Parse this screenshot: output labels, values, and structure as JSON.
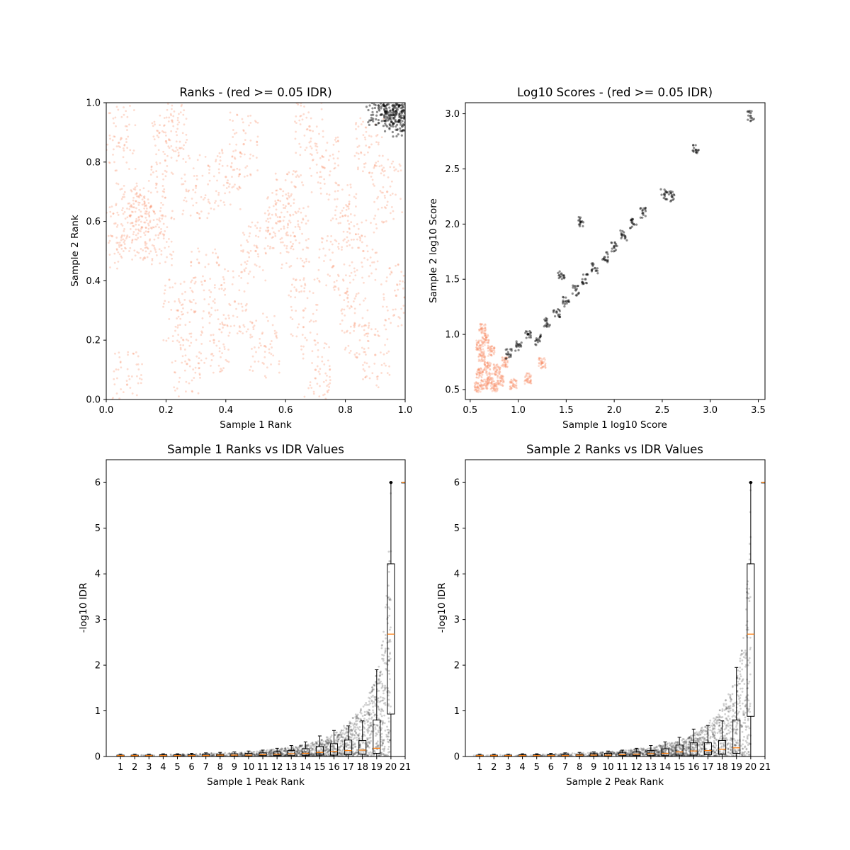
{
  "chart_data": [
    {
      "type": "scatter",
      "title": "Ranks - (red >= 0.05 IDR)",
      "xlabel": "Sample 1 Rank",
      "ylabel": "Sample 2 Rank",
      "xlim": [
        0.0,
        1.0
      ],
      "ylim": [
        0.0,
        1.0
      ],
      "xticks": [
        "0.0",
        "0.2",
        "0.4",
        "0.6",
        "0.8",
        "1.0"
      ],
      "yticks": [
        "0.0",
        "0.2",
        "0.4",
        "0.6",
        "0.8",
        "1.0"
      ],
      "grid": false,
      "colors": {
        "pass": "#000000",
        "fail": "#fa8c64"
      },
      "series": [
        {
          "points": [
            [
              0.02,
              0.55
            ],
            [
              0.05,
              0.88
            ],
            [
              0.08,
              0.62
            ],
            [
              0.1,
              0.6
            ],
            [
              0.12,
              0.58
            ],
            [
              0.15,
              0.65
            ],
            [
              0.18,
              0.56
            ],
            [
              0.2,
              0.87
            ],
            [
              0.24,
              0.3
            ],
            [
              0.27,
              0.12
            ],
            [
              0.3,
              0.72
            ],
            [
              0.33,
              0.4
            ],
            [
              0.36,
              0.2
            ],
            [
              0.4,
              0.75
            ],
            [
              0.43,
              0.33
            ],
            [
              0.46,
              0.86
            ],
            [
              0.5,
              0.5
            ],
            [
              0.53,
              0.18
            ],
            [
              0.58,
              0.6
            ],
            [
              0.61,
              0.66
            ],
            [
              0.63,
              0.55
            ],
            [
              0.66,
              0.3
            ],
            [
              0.7,
              0.1
            ],
            [
              0.73,
              0.78
            ],
            [
              0.76,
              0.45
            ],
            [
              0.8,
              0.62
            ],
            [
              0.83,
              0.25
            ],
            [
              0.86,
              0.5
            ],
            [
              0.9,
              0.15
            ],
            [
              0.94,
              0.7
            ],
            [
              0.97,
              0.35
            ],
            [
              0.07,
              0.05
            ],
            [
              0.22,
              0.94
            ],
            [
              0.68,
              0.92
            ],
            [
              0.88,
              0.85
            ]
          ]
        },
        {
          "points": [
            [
              0.92,
              0.96
            ],
            [
              0.94,
              0.97
            ],
            [
              0.95,
              0.95
            ],
            [
              0.96,
              0.98
            ],
            [
              0.97,
              0.96
            ],
            [
              0.98,
              0.99
            ],
            [
              0.99,
              0.97
            ],
            [
              0.96,
              0.93
            ],
            [
              0.98,
              0.94
            ],
            [
              0.93,
              0.99
            ],
            [
              0.99,
              0.92
            ],
            [
              0.97,
              0.995
            ]
          ]
        }
      ]
    },
    {
      "type": "scatter",
      "title": "Log10 Scores - (red >= 0.05 IDR)",
      "xlabel": "Sample 1 log10 Score",
      "ylabel": "Sample 2 log10 Score",
      "xlim": [
        0.45,
        3.57
      ],
      "ylim": [
        0.41,
        3.1
      ],
      "xticks": [
        "0.5",
        "1.0",
        "1.5",
        "2.0",
        "2.5",
        "3.0",
        "3.5"
      ],
      "yticks": [
        "0.5",
        "1.0",
        "1.5",
        "2.0",
        "2.5",
        "3.0"
      ],
      "grid": false,
      "colors": {
        "pass": "#000000",
        "fail": "#fa8c64"
      },
      "series": [
        {
          "points": [
            [
              0.58,
              0.52
            ],
            [
              0.6,
              0.65
            ],
            [
              0.62,
              0.8
            ],
            [
              0.65,
              0.55
            ],
            [
              0.68,
              0.7
            ],
            [
              0.7,
              0.6
            ],
            [
              0.72,
              0.85
            ],
            [
              0.75,
              0.53
            ],
            [
              0.78,
              0.68
            ],
            [
              0.82,
              0.58
            ],
            [
              0.86,
              0.75
            ],
            [
              0.95,
              0.55
            ],
            [
              1.1,
              0.6
            ],
            [
              1.25,
              0.74
            ],
            [
              0.6,
              0.9
            ],
            [
              0.66,
              0.95
            ],
            [
              0.63,
              1.05
            ]
          ]
        },
        {
          "points": [
            [
              0.9,
              0.82
            ],
            [
              1.0,
              0.9
            ],
            [
              1.1,
              1.0
            ],
            [
              1.2,
              0.95
            ],
            [
              1.3,
              1.1
            ],
            [
              1.4,
              1.2
            ],
            [
              1.5,
              1.3
            ],
            [
              1.6,
              1.4
            ],
            [
              1.7,
              1.5
            ],
            [
              1.8,
              1.6
            ],
            [
              1.9,
              1.7
            ],
            [
              2.0,
              1.8
            ],
            [
              2.1,
              1.9
            ],
            [
              2.2,
              2.0
            ],
            [
              2.3,
              2.1
            ],
            [
              2.52,
              2.27
            ],
            [
              2.6,
              2.25
            ],
            [
              2.85,
              2.67
            ],
            [
              3.42,
              2.98
            ],
            [
              1.45,
              1.55
            ],
            [
              1.65,
              2.02
            ]
          ]
        }
      ]
    },
    {
      "type": "box+scatter",
      "title": "Sample 1 Ranks vs IDR Values",
      "xlabel": "Sample 1 Peak Rank",
      "ylabel": "-log10 IDR",
      "xlim": [
        0,
        21
      ],
      "ylim": [
        0,
        6.5
      ],
      "xticks": [
        "1",
        "2",
        "3",
        "4",
        "5",
        "6",
        "7",
        "8",
        "9",
        "10",
        "11",
        "12",
        "13",
        "14",
        "15",
        "16",
        "17",
        "18",
        "19",
        "20",
        "21"
      ],
      "yticks": [
        "0",
        "1",
        "2",
        "3",
        "4",
        "5",
        "6"
      ],
      "grid": false,
      "boxes": [
        {
          "pos": 1,
          "q1": 0.01,
          "med": 0.02,
          "q3": 0.03,
          "wlo": 0.0,
          "whi": 0.05
        },
        {
          "pos": 2,
          "q1": 0.01,
          "med": 0.02,
          "q3": 0.03,
          "wlo": 0.0,
          "whi": 0.05
        },
        {
          "pos": 3,
          "q1": 0.01,
          "med": 0.02,
          "q3": 0.03,
          "wlo": 0.0,
          "whi": 0.05
        },
        {
          "pos": 4,
          "q1": 0.01,
          "med": 0.02,
          "q3": 0.04,
          "wlo": 0.0,
          "whi": 0.06
        },
        {
          "pos": 5,
          "q1": 0.01,
          "med": 0.02,
          "q3": 0.04,
          "wlo": 0.0,
          "whi": 0.06
        },
        {
          "pos": 6,
          "q1": 0.01,
          "med": 0.02,
          "q3": 0.04,
          "wlo": 0.0,
          "whi": 0.07
        },
        {
          "pos": 7,
          "q1": 0.01,
          "med": 0.02,
          "q3": 0.05,
          "wlo": 0.0,
          "whi": 0.08
        },
        {
          "pos": 8,
          "q1": 0.01,
          "med": 0.03,
          "q3": 0.05,
          "wlo": 0.0,
          "whi": 0.09
        },
        {
          "pos": 9,
          "q1": 0.01,
          "med": 0.03,
          "q3": 0.06,
          "wlo": 0.0,
          "whi": 0.1
        },
        {
          "pos": 10,
          "q1": 0.01,
          "med": 0.03,
          "q3": 0.07,
          "wlo": 0.0,
          "whi": 0.12
        },
        {
          "pos": 11,
          "q1": 0.02,
          "med": 0.04,
          "q3": 0.08,
          "wlo": 0.0,
          "whi": 0.14
        },
        {
          "pos": 12,
          "q1": 0.02,
          "med": 0.05,
          "q3": 0.1,
          "wlo": 0.0,
          "whi": 0.18
        },
        {
          "pos": 13,
          "q1": 0.02,
          "med": 0.06,
          "q3": 0.13,
          "wlo": 0.0,
          "whi": 0.24
        },
        {
          "pos": 14,
          "q1": 0.02,
          "med": 0.07,
          "q3": 0.17,
          "wlo": 0.0,
          "whi": 0.32
        },
        {
          "pos": 15,
          "q1": 0.03,
          "med": 0.09,
          "q3": 0.22,
          "wlo": 0.0,
          "whi": 0.45
        },
        {
          "pos": 16,
          "q1": 0.03,
          "med": 0.11,
          "q3": 0.28,
          "wlo": 0.0,
          "whi": 0.57
        },
        {
          "pos": 17,
          "q1": 0.04,
          "med": 0.13,
          "q3": 0.36,
          "wlo": 0.0,
          "whi": 0.67
        },
        {
          "pos": 18,
          "q1": 0.05,
          "med": 0.14,
          "q3": 0.35,
          "wlo": 0.0,
          "whi": 0.78
        },
        {
          "pos": 19,
          "q1": 0.07,
          "med": 0.18,
          "q3": 0.8,
          "wlo": 0.0,
          "whi": 1.9
        },
        {
          "pos": 20,
          "q1": 0.93,
          "med": 2.68,
          "q3": 4.22,
          "wlo": 0.0,
          "whi": 6.0
        },
        {
          "pos": 21,
          "q1": 6.0,
          "med": 6.0,
          "q3": 6.0,
          "wlo": 6.0,
          "whi": 6.0
        }
      ],
      "trend": [
        [
          0,
          0.03
        ],
        [
          5,
          0.05
        ],
        [
          10,
          0.1
        ],
        [
          13,
          0.2
        ],
        [
          15,
          0.35
        ],
        [
          16,
          0.5
        ],
        [
          17,
          0.75
        ],
        [
          18,
          1.1
        ],
        [
          18.8,
          1.6
        ],
        [
          19.3,
          2.3
        ],
        [
          19.6,
          3.2
        ],
        [
          19.85,
          4.5
        ],
        [
          20,
          6.0
        ]
      ]
    },
    {
      "type": "box+scatter",
      "title": "Sample 2 Ranks vs IDR Values",
      "xlabel": "Sample 2 Peak Rank",
      "ylabel": "-log10 IDR",
      "xlim": [
        0,
        21
      ],
      "ylim": [
        0,
        6.5
      ],
      "xticks": [
        "1",
        "2",
        "3",
        "4",
        "5",
        "6",
        "7",
        "8",
        "9",
        "10",
        "11",
        "12",
        "13",
        "14",
        "15",
        "16",
        "17",
        "18",
        "19",
        "20",
        "21"
      ],
      "yticks": [
        "0",
        "1",
        "2",
        "3",
        "4",
        "5",
        "6"
      ],
      "grid": false,
      "boxes": [
        {
          "pos": 1,
          "q1": 0.01,
          "med": 0.02,
          "q3": 0.03,
          "wlo": 0.0,
          "whi": 0.05
        },
        {
          "pos": 2,
          "q1": 0.01,
          "med": 0.02,
          "q3": 0.03,
          "wlo": 0.0,
          "whi": 0.05
        },
        {
          "pos": 3,
          "q1": 0.01,
          "med": 0.02,
          "q3": 0.03,
          "wlo": 0.0,
          "whi": 0.05
        },
        {
          "pos": 4,
          "q1": 0.01,
          "med": 0.02,
          "q3": 0.04,
          "wlo": 0.0,
          "whi": 0.06
        },
        {
          "pos": 5,
          "q1": 0.01,
          "med": 0.02,
          "q3": 0.04,
          "wlo": 0.0,
          "whi": 0.06
        },
        {
          "pos": 6,
          "q1": 0.01,
          "med": 0.02,
          "q3": 0.04,
          "wlo": 0.0,
          "whi": 0.07
        },
        {
          "pos": 7,
          "q1": 0.01,
          "med": 0.02,
          "q3": 0.05,
          "wlo": 0.0,
          "whi": 0.08
        },
        {
          "pos": 8,
          "q1": 0.01,
          "med": 0.03,
          "q3": 0.05,
          "wlo": 0.0,
          "whi": 0.09
        },
        {
          "pos": 9,
          "q1": 0.01,
          "med": 0.03,
          "q3": 0.06,
          "wlo": 0.0,
          "whi": 0.1
        },
        {
          "pos": 10,
          "q1": 0.01,
          "med": 0.03,
          "q3": 0.07,
          "wlo": 0.0,
          "whi": 0.12
        },
        {
          "pos": 11,
          "q1": 0.02,
          "med": 0.04,
          "q3": 0.08,
          "wlo": 0.0,
          "whi": 0.14
        },
        {
          "pos": 12,
          "q1": 0.02,
          "med": 0.05,
          "q3": 0.1,
          "wlo": 0.0,
          "whi": 0.18
        },
        {
          "pos": 13,
          "q1": 0.02,
          "med": 0.06,
          "q3": 0.13,
          "wlo": 0.0,
          "whi": 0.24
        },
        {
          "pos": 14,
          "q1": 0.02,
          "med": 0.07,
          "q3": 0.17,
          "wlo": 0.0,
          "whi": 0.32
        },
        {
          "pos": 15,
          "q1": 0.03,
          "med": 0.1,
          "q3": 0.25,
          "wlo": 0.0,
          "whi": 0.42
        },
        {
          "pos": 16,
          "q1": 0.03,
          "med": 0.12,
          "q3": 0.3,
          "wlo": 0.0,
          "whi": 0.6
        },
        {
          "pos": 17,
          "q1": 0.04,
          "med": 0.13,
          "q3": 0.3,
          "wlo": 0.0,
          "whi": 0.68
        },
        {
          "pos": 18,
          "q1": 0.05,
          "med": 0.16,
          "q3": 0.35,
          "wlo": 0.0,
          "whi": 0.78
        },
        {
          "pos": 19,
          "q1": 0.07,
          "med": 0.19,
          "q3": 0.8,
          "wlo": 0.0,
          "whi": 1.95
        },
        {
          "pos": 20,
          "q1": 0.88,
          "med": 2.68,
          "q3": 4.22,
          "wlo": 0.0,
          "whi": 6.0
        },
        {
          "pos": 21,
          "q1": 6.0,
          "med": 6.0,
          "q3": 6.0,
          "wlo": 6.0,
          "whi": 6.0
        }
      ],
      "trend": [
        [
          0,
          0.03
        ],
        [
          5,
          0.05
        ],
        [
          10,
          0.1
        ],
        [
          13,
          0.2
        ],
        [
          15,
          0.35
        ],
        [
          16,
          0.5
        ],
        [
          17,
          0.75
        ],
        [
          18,
          1.1
        ],
        [
          18.8,
          1.6
        ],
        [
          19.3,
          2.3
        ],
        [
          19.6,
          3.2
        ],
        [
          19.85,
          4.5
        ],
        [
          20,
          6.0
        ]
      ]
    }
  ]
}
